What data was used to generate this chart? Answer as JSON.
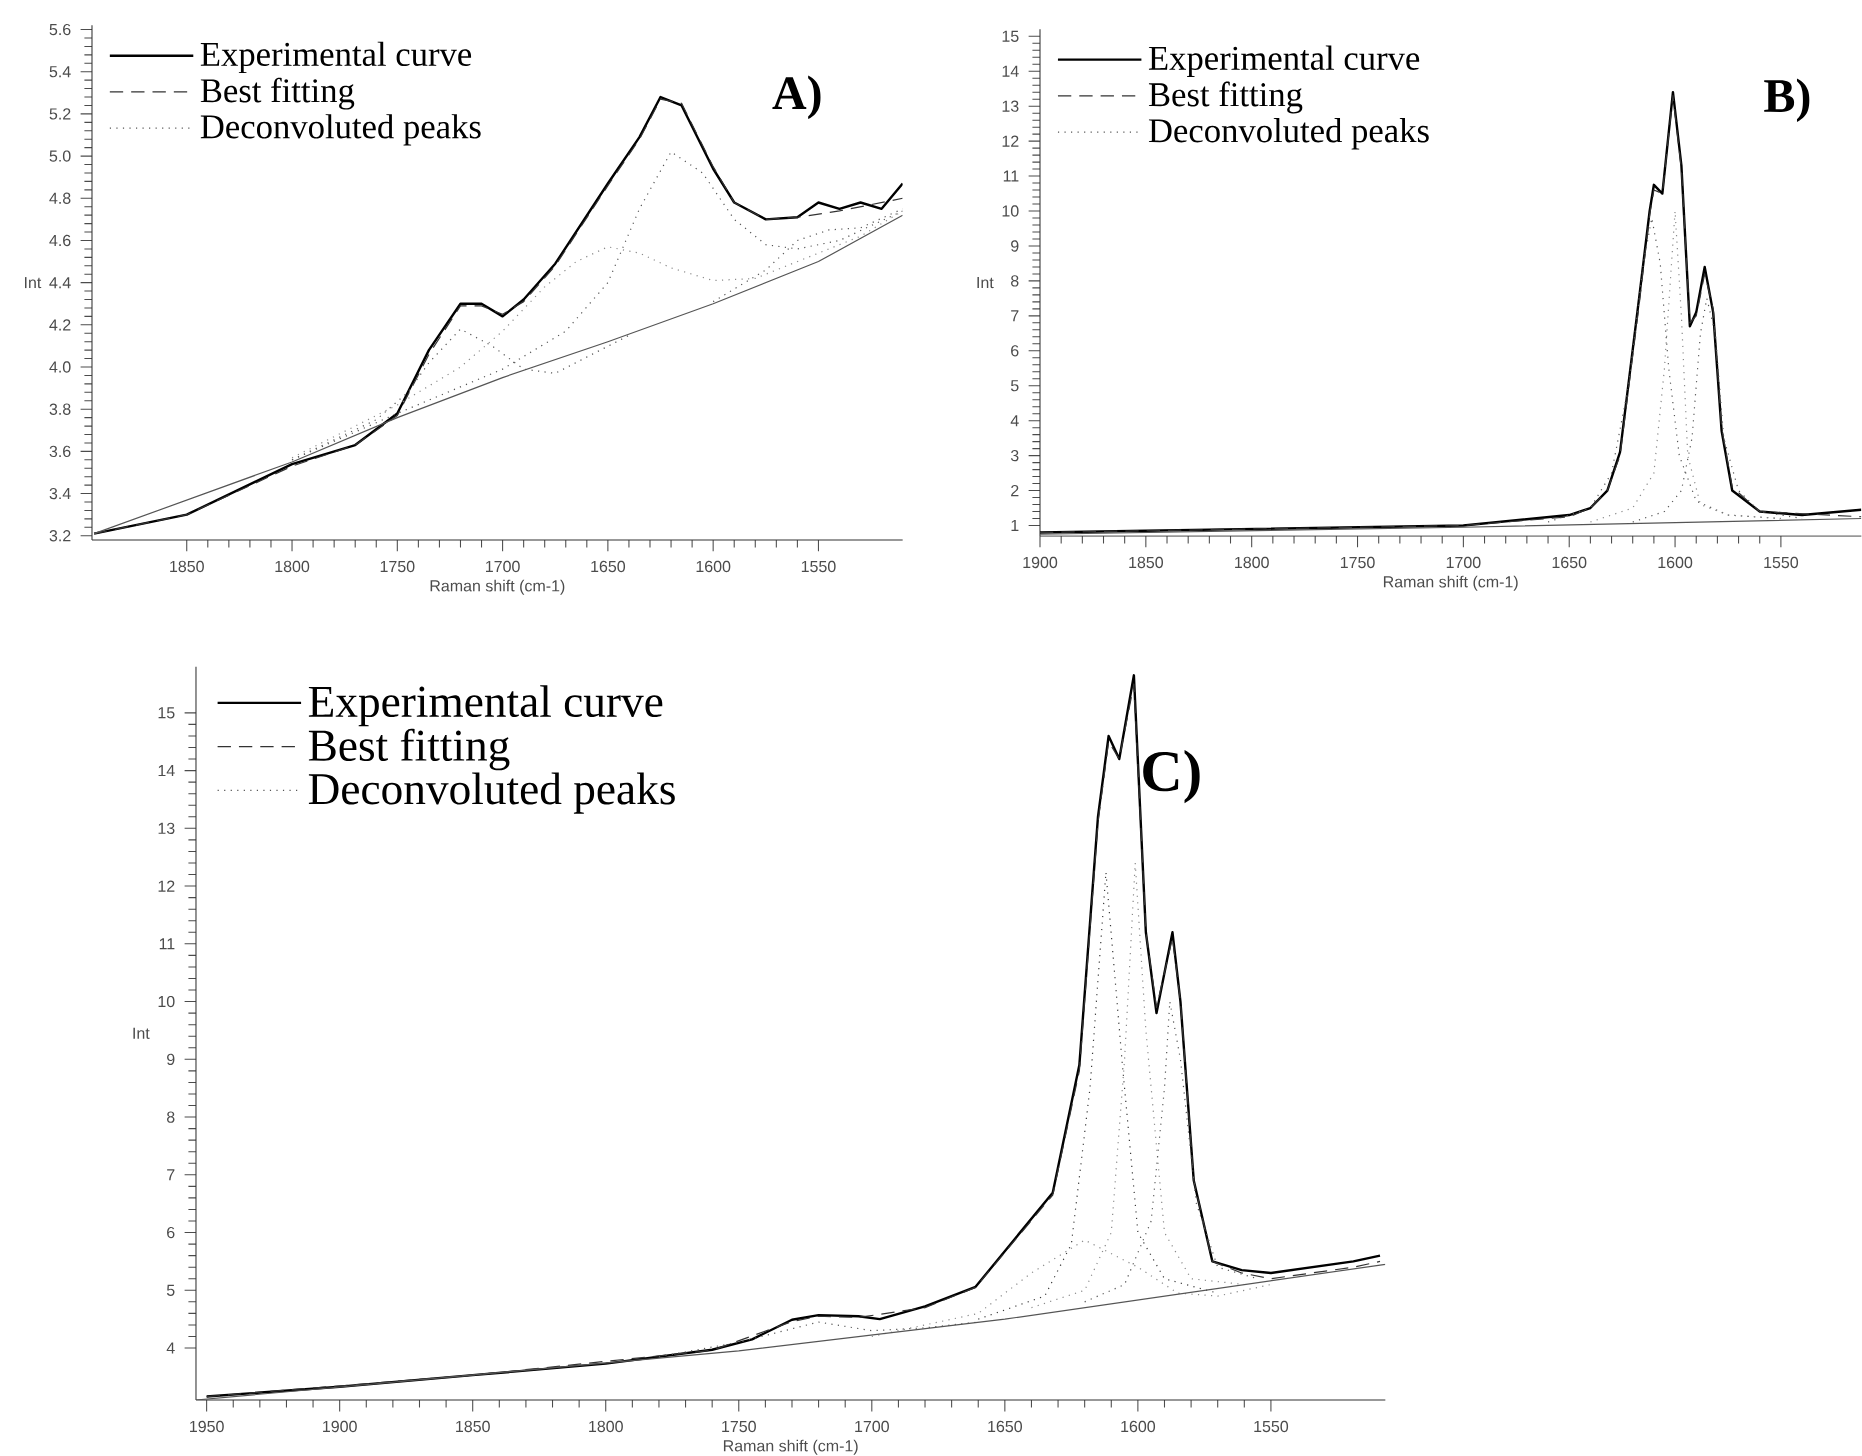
{
  "chart_data": [
    {
      "type": "line",
      "annotations": [
        "A)"
      ],
      "xlabel": "Raman shift (cm-1)",
      "ylabel": "Int",
      "xlim": [
        1895,
        1510
      ],
      "ylim": [
        3.18,
        5.62
      ],
      "xticks": [
        1850,
        1800,
        1750,
        1700,
        1650,
        1600,
        1550
      ],
      "yticks": [
        3.2,
        3.4,
        3.6,
        3.8,
        {
          "value": 4,
          "label": "4.0"
        },
        4.2,
        4.4,
        4.6,
        4.8,
        {
          "value": 5,
          "label": "5.0"
        },
        5.2,
        5.4,
        5.6
      ],
      "grid": false,
      "legend": "top left",
      "series": [
        {
          "name": "Experimental curve",
          "color": "#000000",
          "line_style": "solid",
          "x": [
            1894,
            1850,
            1800,
            1770,
            1750,
            1735,
            1720,
            1710,
            1700,
            1690,
            1675,
            1650,
            1635,
            1625,
            1615,
            1600,
            1590,
            1575,
            1560,
            1550,
            1540,
            1530,
            1520,
            1510
          ],
          "values": [
            3.21,
            3.3,
            3.54,
            3.63,
            3.78,
            4.08,
            4.3,
            4.3,
            4.24,
            4.32,
            4.49,
            4.87,
            5.09,
            5.28,
            5.24,
            4.94,
            4.78,
            4.7,
            4.71,
            4.78,
            4.75,
            4.78,
            4.75,
            4.87
          ]
        },
        {
          "name": "Best fitting",
          "color": "#333333",
          "line_style": "dashed",
          "x": [
            1894,
            1850,
            1800,
            1770,
            1750,
            1735,
            1720,
            1710,
            1700,
            1690,
            1675,
            1650,
            1635,
            1625,
            1615,
            1600,
            1590,
            1575,
            1560,
            1540,
            1510
          ],
          "values": [
            3.21,
            3.3,
            3.53,
            3.63,
            3.77,
            4.06,
            4.29,
            4.29,
            4.25,
            4.31,
            4.48,
            4.86,
            5.08,
            5.27,
            5.25,
            4.95,
            4.78,
            4.7,
            4.71,
            4.74,
            4.8
          ]
        },
        {
          "name": "Deconvoluted peaks",
          "color": "#555555",
          "line_style": "dotted",
          "x": [
            1800,
            1760,
            1745,
            1735,
            1720,
            1705,
            1690,
            1675,
            1640
          ],
          "values": [
            3.56,
            3.75,
            3.88,
            4.02,
            4.18,
            4.1,
            3.99,
            3.97,
            4.15
          ]
        },
        {
          "color": "#8a8a8a",
          "line_style": "dotted",
          "x": [
            1800,
            1750,
            1720,
            1700,
            1680,
            1665,
            1650,
            1635,
            1620,
            1600,
            1580,
            1560,
            1530,
            1510
          ],
          "values": [
            3.57,
            3.82,
            4.0,
            4.17,
            4.38,
            4.5,
            4.57,
            4.54,
            4.47,
            4.41,
            4.42,
            4.5,
            4.62,
            4.74
          ]
        },
        {
          "color": "#555555",
          "line_style": "dotted",
          "x": [
            1800,
            1750,
            1700,
            1670,
            1650,
            1635,
            1620,
            1605,
            1590,
            1575,
            1560,
            1540,
            1510
          ],
          "values": [
            3.56,
            3.78,
            3.99,
            4.17,
            4.4,
            4.75,
            5.02,
            4.92,
            4.7,
            4.58,
            4.56,
            4.6,
            4.74
          ]
        },
        {
          "color": "#555555",
          "line_style": "dotted",
          "x": [
            1600,
            1575,
            1560,
            1545,
            1530,
            1510
          ],
          "values": [
            4.31,
            4.46,
            4.6,
            4.65,
            4.66,
            4.75
          ]
        },
        {
          "color": "#555555",
          "line_style": "solid",
          "x": [
            1894,
            1800,
            1750,
            1700,
            1650,
            1600,
            1550,
            1510
          ],
          "values": [
            3.21,
            3.55,
            3.76,
            3.95,
            4.12,
            4.3,
            4.5,
            4.72
          ]
        }
      ]
    },
    {
      "type": "line",
      "annotations": [
        "B)"
      ],
      "xlabel": "Raman shift (cm-1)",
      "ylabel": "Int",
      "xlim": [
        1900,
        1512
      ],
      "ylim": [
        0.7,
        15.2
      ],
      "xticks": [
        1900,
        1850,
        1800,
        1750,
        1700,
        1650,
        1600,
        1550
      ],
      "yticks": [
        1,
        2,
        3,
        4,
        5,
        6,
        7,
        8,
        9,
        10,
        11,
        12,
        13,
        14,
        15
      ],
      "grid": false,
      "legend": "top left",
      "series": [
        {
          "name": "Experimental curve",
          "color": "#000000",
          "line_style": "solid",
          "x": [
            1900,
            1850,
            1800,
            1750,
            1700,
            1650,
            1640,
            1632,
            1626,
            1617,
            1612,
            1610,
            1606,
            1601,
            1597,
            1593,
            1590,
            1586,
            1582,
            1578,
            1573,
            1560,
            1540,
            1512
          ],
          "values": [
            0.8,
            0.85,
            0.9,
            0.95,
            1.0,
            1.3,
            1.5,
            2.0,
            3.1,
            7.5,
            10.0,
            10.75,
            10.5,
            13.4,
            11.3,
            6.7,
            7.1,
            8.4,
            7.1,
            3.7,
            2.0,
            1.4,
            1.3,
            1.45
          ]
        },
        {
          "name": "Best fitting",
          "color": "#333333",
          "line_style": "dashed",
          "x": [
            1900,
            1800,
            1700,
            1650,
            1640,
            1632,
            1626,
            1617,
            1612,
            1610,
            1606,
            1601,
            1597,
            1593,
            1590,
            1586,
            1582,
            1578,
            1573,
            1560,
            1512
          ],
          "values": [
            0.8,
            0.9,
            1.0,
            1.25,
            1.5,
            2.0,
            3.0,
            7.3,
            9.9,
            10.6,
            10.5,
            13.3,
            11.2,
            6.8,
            7.0,
            8.2,
            7.2,
            3.8,
            2.1,
            1.4,
            1.25
          ]
        },
        {
          "name": "Deconvoluted peaks",
          "color": "#555555",
          "line_style": "dotted",
          "x": [
            1660,
            1640,
            1630,
            1622,
            1615,
            1611,
            1607,
            1603,
            1598,
            1590,
            1575,
            1550
          ],
          "values": [
            1.1,
            1.5,
            2.5,
            5.0,
            8.5,
            9.8,
            8.5,
            5.5,
            3.0,
            1.7,
            1.3,
            1.2
          ]
        },
        {
          "color": "#8a8a8a",
          "line_style": "dotted",
          "x": [
            1640,
            1620,
            1610,
            1605,
            1600,
            1597,
            1594,
            1588,
            1575,
            1550
          ],
          "values": [
            1.1,
            1.5,
            2.5,
            5.5,
            10.0,
            7.0,
            3.0,
            1.6,
            1.3,
            1.2
          ]
        },
        {
          "color": "#555555",
          "line_style": "dotted",
          "x": [
            1620,
            1605,
            1597,
            1592,
            1588,
            1585,
            1581,
            1577,
            1570,
            1560,
            1540
          ],
          "values": [
            1.1,
            1.4,
            2.0,
            3.5,
            6.5,
            7.5,
            6.5,
            3.5,
            2.0,
            1.4,
            1.2
          ]
        },
        {
          "color": "#555555",
          "line_style": "solid",
          "x": [
            1900,
            1700,
            1512
          ],
          "values": [
            0.75,
            0.95,
            1.2
          ]
        }
      ]
    },
    {
      "type": "line",
      "annotations": [
        "C)"
      ],
      "xlabel": "Raman shift (cm-1)",
      "ylabel": "Int",
      "xlim": [
        1954,
        1507
      ],
      "ylim": [
        3.1,
        15.8
      ],
      "xticks": [
        1950,
        1900,
        1850,
        1800,
        1750,
        1700,
        1650,
        1600,
        1550
      ],
      "yticks": [
        4,
        5,
        6,
        7,
        8,
        9,
        10,
        11,
        12,
        13,
        14,
        15
      ],
      "grid": false,
      "legend": "top left",
      "series": [
        {
          "name": "Experimental curve",
          "color": "#000000",
          "line_style": "solid",
          "x": [
            1950,
            1900,
            1850,
            1800,
            1760,
            1745,
            1730,
            1720,
            1705,
            1697,
            1680,
            1661,
            1632,
            1622,
            1615,
            1611,
            1607,
            1601.5,
            1597,
            1593,
            1587,
            1584,
            1579,
            1572,
            1561,
            1550,
            1519,
            1509
          ],
          "values": [
            3.16,
            3.33,
            3.53,
            3.73,
            3.97,
            4.15,
            4.49,
            4.57,
            4.55,
            4.5,
            4.72,
            5.06,
            6.69,
            8.9,
            13.2,
            14.6,
            14.2,
            15.65,
            11.2,
            9.8,
            11.2,
            10.0,
            6.9,
            5.5,
            5.35,
            5.3,
            5.5,
            5.6
          ]
        },
        {
          "name": "Best fitting",
          "color": "#333333",
          "line_style": "dashed",
          "x": [
            1950,
            1850,
            1760,
            1730,
            1720,
            1705,
            1680,
            1661,
            1632,
            1622,
            1615,
            1611,
            1607,
            1601.5,
            1597,
            1593,
            1587,
            1584,
            1579,
            1572,
            1561,
            1550,
            1519,
            1509
          ],
          "values": [
            3.16,
            3.53,
            3.96,
            4.46,
            4.55,
            4.53,
            4.7,
            5.05,
            6.65,
            8.8,
            13.1,
            14.5,
            14.2,
            15.5,
            11.2,
            9.9,
            11.1,
            10.0,
            6.9,
            5.5,
            5.3,
            5.2,
            5.4,
            5.5
          ]
        },
        {
          "name": "Deconvoluted peaks",
          "color": "#555555",
          "line_style": "dotted",
          "x": [
            1780,
            1750,
            1720,
            1700,
            1680,
            1660
          ],
          "values": [
            3.85,
            4.1,
            4.45,
            4.3,
            4.35,
            4.45
          ]
        },
        {
          "color": "#8a8a8a",
          "line_style": "dotted",
          "x": [
            1700,
            1660,
            1640,
            1620,
            1600,
            1585,
            1570,
            1550
          ],
          "values": [
            4.2,
            4.6,
            5.3,
            5.87,
            5.4,
            4.95,
            4.9,
            5.1
          ]
        },
        {
          "color": "#3a3a3a",
          "line_style": "dotted",
          "x": [
            1660,
            1635,
            1625,
            1618,
            1612,
            1606,
            1600,
            1590,
            1570
          ],
          "values": [
            4.5,
            4.9,
            5.8,
            8.5,
            12.24,
            9.0,
            6.0,
            5.2,
            4.95
          ]
        },
        {
          "color": "#8a8a8a",
          "line_style": "dotted",
          "x": [
            1640,
            1620,
            1610,
            1605,
            1601,
            1597,
            1590,
            1580,
            1560
          ],
          "values": [
            4.7,
            5.0,
            6.0,
            9.0,
            12.4,
            9.5,
            6.0,
            5.2,
            5.1
          ]
        },
        {
          "color": "#555555",
          "line_style": "dotted",
          "x": [
            1620,
            1605,
            1595,
            1590,
            1588,
            1584,
            1578,
            1570,
            1555
          ],
          "values": [
            4.8,
            5.1,
            6.2,
            8.5,
            10.0,
            9.0,
            6.5,
            5.4,
            5.2
          ]
        },
        {
          "color": "#555555",
          "line_style": "solid",
          "x": [
            1954,
            1750,
            1650,
            1507
          ],
          "values": [
            3.1,
            3.95,
            4.5,
            5.45
          ]
        }
      ]
    }
  ]
}
